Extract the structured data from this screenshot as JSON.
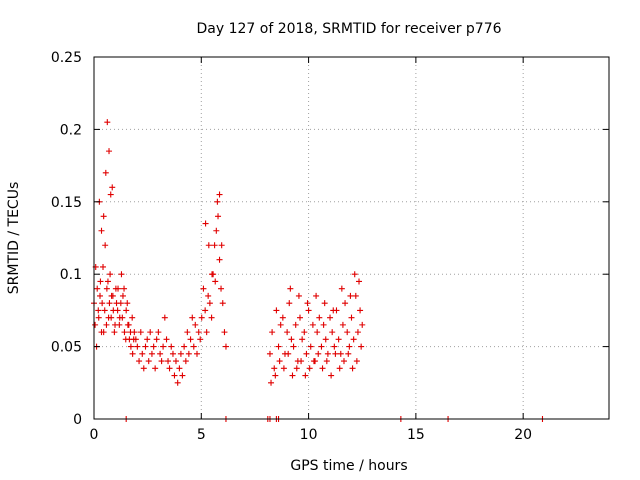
{
  "chart_data": {
    "type": "scatter",
    "title": "Day 127 of 2018, SRMTID for receiver p776",
    "xlabel": "GPS time / hours",
    "ylabel": "SRMTID / TECUs",
    "xlim": [
      0,
      24
    ],
    "ylim": [
      0,
      0.25
    ],
    "grid": true,
    "marker": "+",
    "color": "#e00000",
    "x_ticks": [
      0,
      5,
      10,
      15,
      20
    ],
    "x_tick_labels": [
      "0",
      "5",
      "10",
      "15",
      "20"
    ],
    "y_ticks": [
      0,
      0.05,
      0.1,
      0.15,
      0.2,
      0.25
    ],
    "y_tick_labels": [
      "0",
      "0.05",
      "0.1",
      "0.15",
      "0.2",
      "0.25"
    ],
    "series": [
      {
        "name": "SRMTID",
        "x": [
          0.0,
          0.08,
          0.15,
          0.22,
          0.3,
          0.38,
          0.45,
          0.52,
          0.6,
          0.68,
          0.75,
          0.82,
          0.9,
          0.98,
          1.05,
          1.12,
          1.2,
          1.28,
          1.35,
          1.42,
          1.5,
          1.58,
          1.65,
          1.72,
          1.8,
          1.88,
          1.95,
          2.02,
          2.1,
          2.18,
          2.25,
          2.32,
          2.4,
          2.48,
          2.55,
          2.62,
          2.7,
          2.78,
          2.85,
          2.92,
          3.0,
          3.08,
          3.15,
          3.22,
          3.3,
          3.38,
          3.45,
          3.52,
          3.6,
          3.68,
          3.75,
          3.82,
          3.9,
          3.98,
          4.05,
          4.12,
          4.2,
          4.28,
          4.35,
          4.42,
          4.5,
          4.58,
          4.65,
          4.72,
          4.8,
          4.88,
          4.95,
          5.02,
          5.1,
          5.18,
          5.25,
          5.32,
          5.4,
          5.48,
          5.55,
          5.62,
          5.7,
          5.78,
          5.85,
          5.92,
          6.0,
          6.08,
          6.15,
          0.05,
          0.12,
          0.2,
          0.28,
          0.35,
          0.42,
          0.5,
          0.58,
          0.65,
          0.72,
          0.8,
          0.88,
          0.95,
          1.02,
          1.1,
          1.18,
          1.25,
          1.32,
          1.4,
          1.48,
          1.55,
          1.62,
          1.7,
          1.78,
          1.85,
          0.25,
          0.35,
          0.45,
          0.55,
          0.62,
          0.7,
          0.78,
          0.85,
          5.2,
          5.35,
          5.5,
          5.65,
          5.75,
          5.85,
          5.95,
          8.2,
          8.3,
          8.4,
          8.5,
          8.6,
          8.7,
          8.8,
          8.9,
          9.0,
          9.1,
          9.2,
          9.3,
          9.4,
          9.5,
          9.6,
          9.7,
          9.8,
          9.9,
          10.0,
          10.1,
          10.2,
          10.3,
          10.4,
          10.5,
          10.6,
          10.7,
          10.8,
          10.9,
          11.0,
          11.1,
          11.2,
          11.3,
          11.4,
          11.5,
          11.6,
          11.7,
          11.8,
          11.9,
          12.0,
          12.1,
          12.2,
          12.3,
          12.4,
          12.5,
          8.25,
          8.45,
          8.65,
          8.85,
          9.05,
          9.25,
          9.45,
          9.65,
          9.85,
          10.05,
          10.25,
          10.45,
          10.65,
          10.85,
          11.05,
          11.25,
          11.45,
          11.65,
          11.85,
          12.05,
          12.25,
          12.45,
          9.15,
          9.55,
          9.95,
          10.35,
          10.75,
          11.15,
          11.55,
          11.95,
          12.15,
          12.35,
          1.5,
          6.15,
          8.1,
          8.2,
          8.5,
          8.6,
          14.3,
          16.5,
          20.9
        ],
        "y": [
          0.08,
          0.105,
          0.09,
          0.07,
          0.095,
          0.08,
          0.06,
          0.12,
          0.09,
          0.07,
          0.1,
          0.085,
          0.075,
          0.065,
          0.08,
          0.09,
          0.07,
          0.1,
          0.085,
          0.06,
          0.075,
          0.065,
          0.055,
          0.05,
          0.045,
          0.06,
          0.055,
          0.05,
          0.04,
          0.06,
          0.045,
          0.035,
          0.05,
          0.055,
          0.04,
          0.06,
          0.045,
          0.05,
          0.035,
          0.055,
          0.06,
          0.045,
          0.04,
          0.05,
          0.07,
          0.055,
          0.04,
          0.035,
          0.05,
          0.045,
          0.03,
          0.04,
          0.025,
          0.035,
          0.045,
          0.03,
          0.05,
          0.04,
          0.06,
          0.045,
          0.055,
          0.07,
          0.05,
          0.065,
          0.045,
          0.06,
          0.055,
          0.07,
          0.09,
          0.075,
          0.06,
          0.085,
          0.08,
          0.07,
          0.1,
          0.12,
          0.13,
          0.14,
          0.11,
          0.09,
          0.08,
          0.06,
          0.05,
          0.065,
          0.05,
          0.075,
          0.085,
          0.06,
          0.105,
          0.075,
          0.065,
          0.095,
          0.08,
          0.07,
          0.085,
          0.06,
          0.09,
          0.075,
          0.065,
          0.08,
          0.07,
          0.09,
          0.055,
          0.08,
          0.065,
          0.06,
          0.07,
          0.055,
          0.15,
          0.13,
          0.14,
          0.17,
          0.205,
          0.185,
          0.155,
          0.16,
          0.135,
          0.12,
          0.1,
          0.095,
          0.15,
          0.155,
          0.12,
          0.045,
          0.06,
          0.035,
          0.075,
          0.05,
          0.065,
          0.07,
          0.045,
          0.06,
          0.08,
          0.055,
          0.05,
          0.065,
          0.04,
          0.07,
          0.055,
          0.06,
          0.045,
          0.075,
          0.05,
          0.065,
          0.04,
          0.06,
          0.07,
          0.05,
          0.065,
          0.055,
          0.045,
          0.07,
          0.06,
          0.05,
          0.075,
          0.055,
          0.045,
          0.065,
          0.08,
          0.06,
          0.05,
          0.07,
          0.055,
          0.085,
          0.06,
          0.075,
          0.065,
          0.025,
          0.03,
          0.04,
          0.035,
          0.045,
          0.03,
          0.035,
          0.04,
          0.03,
          0.035,
          0.04,
          0.045,
          0.035,
          0.04,
          0.03,
          0.045,
          0.035,
          0.04,
          0.045,
          0.035,
          0.04,
          0.05,
          0.09,
          0.085,
          0.08,
          0.085,
          0.08,
          0.075,
          0.09,
          0.085,
          0.1,
          0.095,
          0.0,
          0.0,
          0.0,
          0.0,
          0.0,
          0.0,
          0.0,
          0.0,
          0.0
        ]
      }
    ]
  }
}
